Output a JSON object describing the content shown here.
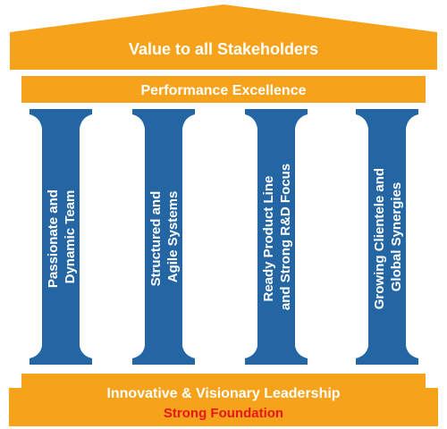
{
  "roof": {
    "label": "Value to all Stakeholders"
  },
  "beam": {
    "label": "Performance Excellence"
  },
  "pillars": [
    {
      "line1": "Passionate and",
      "line2": "Dynamic Team"
    },
    {
      "line1": "Structured and",
      "line2": "Agile Systems"
    },
    {
      "line1": "Ready Product Line",
      "line2": "and Strong R&D Focus"
    },
    {
      "line1": "Growing Clientele and",
      "line2": "Global Synergies"
    }
  ],
  "base": {
    "label": "Innovative & Visionary Leadership",
    "sublabel": "Strong Foundation"
  },
  "colors": {
    "roof": "#F7A21B",
    "pillar": "#2466A4",
    "text": "#FFFFFF",
    "foundation_text": "#E8161B"
  }
}
